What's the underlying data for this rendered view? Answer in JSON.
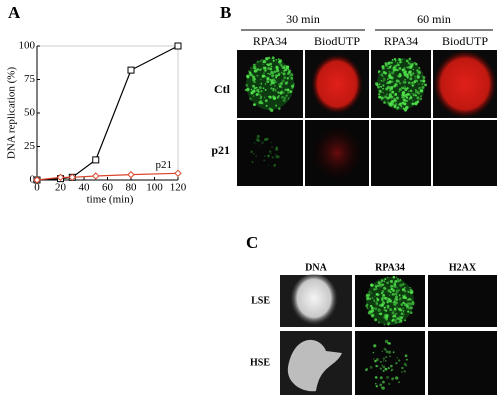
{
  "chart_data": {
    "type": "line",
    "x_label": "time (min)",
    "y_label": "DNA replication (%)",
    "xlim": [
      0,
      120
    ],
    "xticks": [
      0,
      20,
      40,
      60,
      80,
      100,
      120
    ],
    "ylim": [
      0,
      100
    ],
    "yticks": [
      0,
      25,
      50,
      75,
      100
    ],
    "series": [
      {
        "color": "#000000",
        "marker": "square",
        "x": [
          0,
          20,
          30,
          50,
          80,
          120
        ],
        "values": [
          0,
          1,
          2,
          15,
          82,
          100
        ]
      },
      {
        "name": "p21",
        "color": "#d9442a",
        "marker": "diamond",
        "x": [
          0,
          20,
          30,
          50,
          80,
          120
        ],
        "values": [
          0,
          2,
          2,
          3,
          4,
          5
        ]
      }
    ]
  },
  "panel_labels": [
    "A",
    "B",
    "C"
  ],
  "panel_b": {
    "groups": [
      "30 min",
      "60 min"
    ],
    "columns": [
      "RPA34",
      "BiodUTP",
      "RPA34",
      "BiodUTP"
    ],
    "rows": [
      "Ctl",
      "p21"
    ]
  },
  "panel_c": {
    "columns": [
      "DNA",
      "RPA34",
      "H2AX"
    ],
    "rows": [
      "LSE",
      "HSE"
    ]
  }
}
